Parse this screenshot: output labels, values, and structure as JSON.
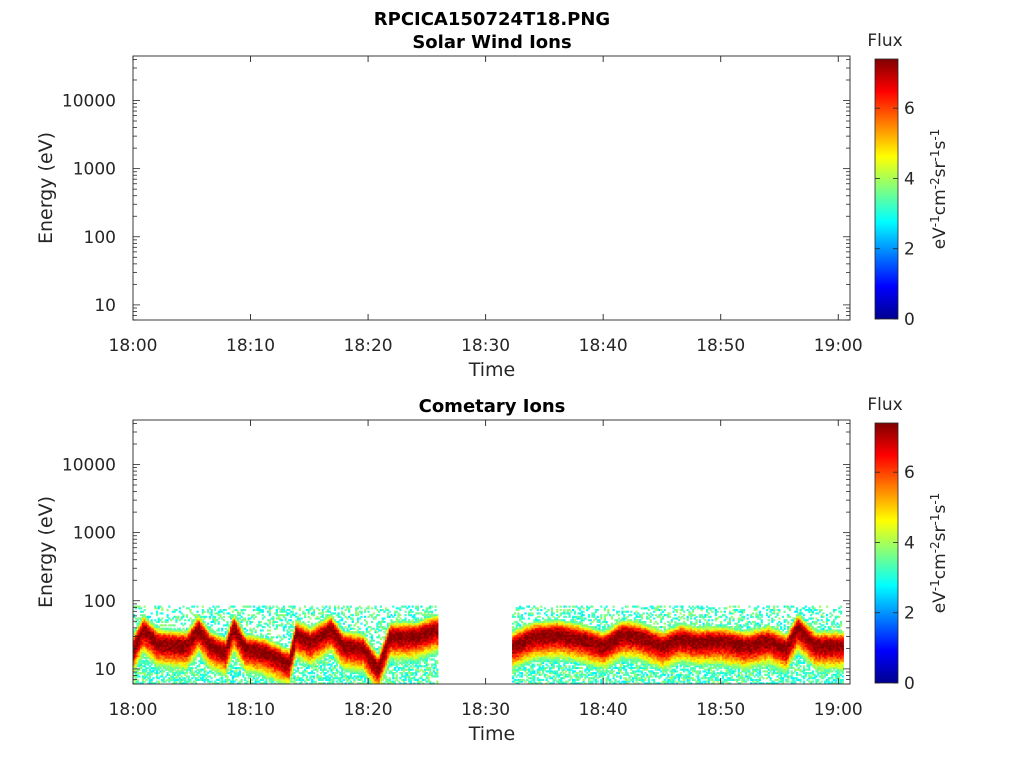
{
  "figure": {
    "title": "RPCICA150724T18.PNG"
  },
  "colorbar": {
    "title": "Flux",
    "label_base": "eV",
    "label_parts": [
      "eV",
      "-1",
      "cm",
      "-2",
      "sr",
      "-1",
      "s",
      "-1"
    ],
    "ticks": [
      0,
      2,
      4,
      6
    ],
    "range": [
      0,
      7.4
    ],
    "colormap": "jet"
  },
  "chart_data": [
    {
      "type": "heatmap",
      "title": "Solar Wind Ions",
      "xlabel": "Time",
      "ylabel": "Energy (eV)",
      "x_ticks": [
        "18:00",
        "18:10",
        "18:20",
        "18:30",
        "18:40",
        "18:50",
        "19:00"
      ],
      "y_ticks": [
        10,
        100,
        1000,
        10000
      ],
      "y_scale": "log",
      "xlim_minutes": [
        0,
        61
      ],
      "ylim": [
        6,
        45000
      ],
      "data": []
    },
    {
      "type": "heatmap",
      "title": "Cometary Ions",
      "xlabel": "Time",
      "ylabel": "Energy (eV)",
      "x_ticks": [
        "18:00",
        "18:10",
        "18:20",
        "18:30",
        "18:40",
        "18:50",
        "19:00"
      ],
      "y_ticks": [
        10,
        100,
        1000,
        10000
      ],
      "y_scale": "log",
      "xlim_minutes": [
        0,
        61
      ],
      "ylim": [
        6,
        45000
      ],
      "data_gap_minutes": [
        25.8,
        32.2
      ],
      "energy_range_eV": [
        6,
        85
      ],
      "peak_energy_eV": [
        [
          0,
          20
        ],
        [
          0.8,
          38
        ],
        [
          2.0,
          24
        ],
        [
          4.5,
          22
        ],
        [
          5.5,
          38
        ],
        [
          6.5,
          22
        ],
        [
          7.8,
          18
        ],
        [
          8.5,
          40
        ],
        [
          9.5,
          20
        ],
        [
          11,
          18
        ],
        [
          13.2,
          12
        ],
        [
          13.8,
          32
        ],
        [
          15,
          25
        ],
        [
          16.8,
          38
        ],
        [
          17.8,
          22
        ],
        [
          19.5,
          20
        ],
        [
          20.8,
          10
        ],
        [
          21.8,
          30
        ],
        [
          24,
          30
        ],
        [
          25.6,
          38
        ],
        [
          32.2,
          22
        ],
        [
          34,
          30
        ],
        [
          36,
          32
        ],
        [
          38,
          28
        ],
        [
          40,
          22
        ],
        [
          41.5,
          32
        ],
        [
          43,
          30
        ],
        [
          45,
          22
        ],
        [
          46.5,
          28
        ],
        [
          48,
          25
        ],
        [
          50,
          26
        ],
        [
          52,
          22
        ],
        [
          54,
          26
        ],
        [
          55.5,
          20
        ],
        [
          56.5,
          40
        ],
        [
          58,
          22
        ],
        [
          60.5,
          22
        ]
      ]
    }
  ]
}
